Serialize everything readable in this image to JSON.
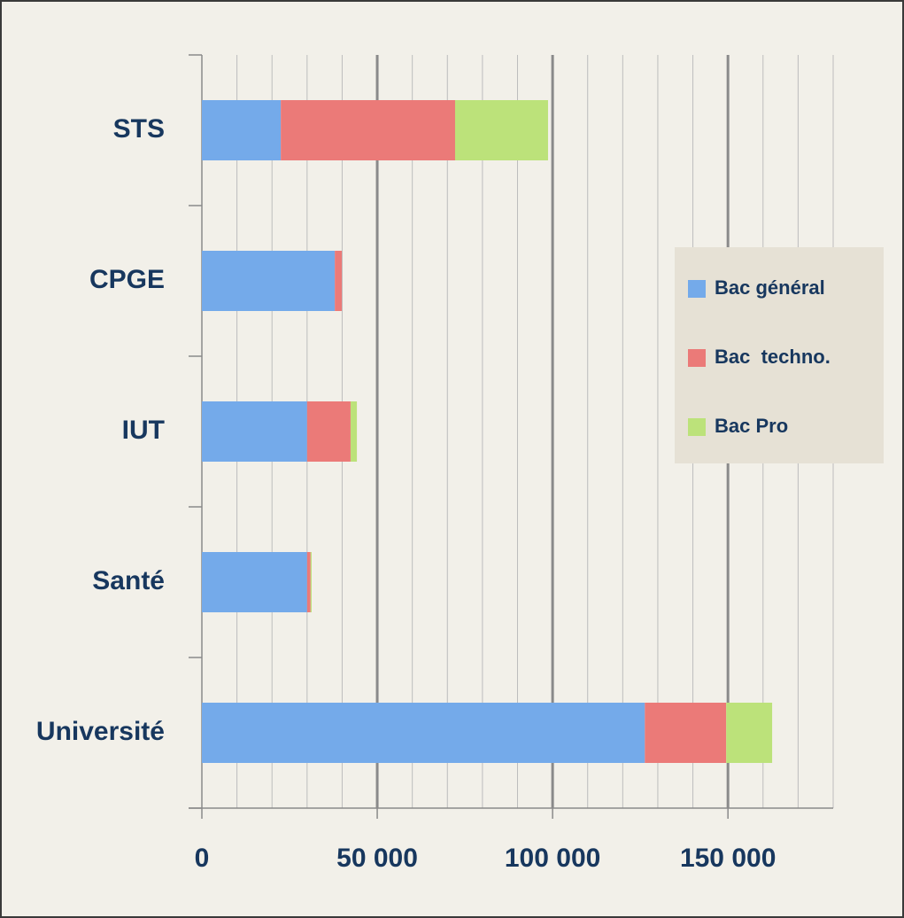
{
  "chart_data": {
    "type": "stacked_bar_horizontal",
    "categories": [
      "STS",
      "CPGE",
      "IUT",
      "Santé",
      "Université"
    ],
    "series": [
      {
        "name": "Bac général",
        "color": "#74aaea",
        "values": [
          22500,
          37900,
          30000,
          30000,
          126300
        ]
      },
      {
        "name": "Bac  techno.",
        "color": "#eb7a78",
        "values": [
          49700,
          2000,
          12400,
          1000,
          23200
        ]
      },
      {
        "name": "Bac Pro",
        "color": "#bce27a",
        "values": [
          26500,
          0,
          1800,
          300,
          13100
        ]
      }
    ],
    "xlim": [
      0,
      180000
    ],
    "xticks": [
      0,
      {
        "value": 50000,
        "label": "50 000"
      },
      {
        "value": 100000,
        "label": "100 000"
      },
      {
        "value": 150000,
        "label": "150 000"
      }
    ],
    "xminorticks": [
      10000,
      20000,
      30000,
      40000,
      60000,
      70000,
      80000,
      90000,
      110000,
      120000,
      130000,
      140000,
      160000,
      170000,
      180000
    ],
    "grid": true,
    "legend": "right"
  }
}
